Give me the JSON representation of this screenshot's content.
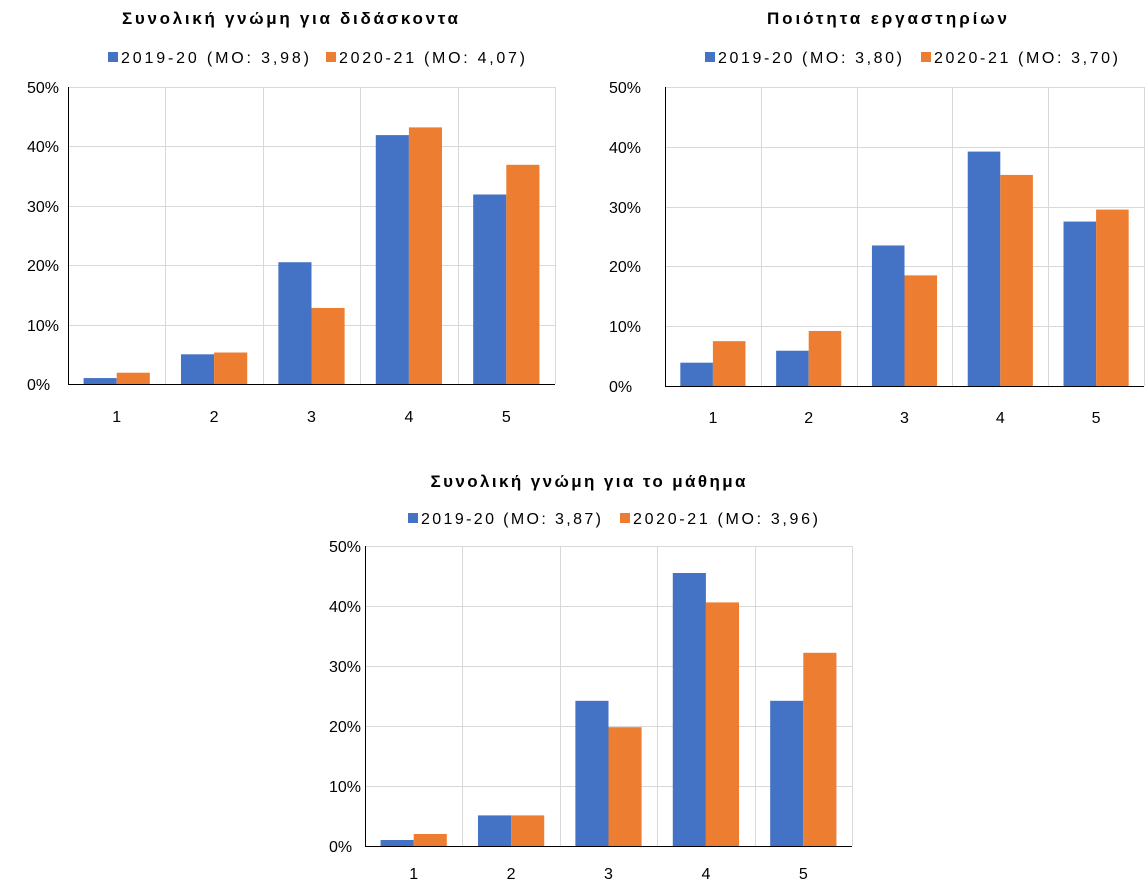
{
  "colors": {
    "grid": "#D9D9D9",
    "axis": "#000000",
    "text": "#000000"
  },
  "chart_data": [
    {
      "type": "bar",
      "title": "Συνολική γνώμη για διδάσκοντα",
      "categories": [
        "1",
        "2",
        "3",
        "4",
        "5"
      ],
      "series": [
        {
          "name": "2019-20 (MO: 3,98)",
          "color": "#4472C4",
          "values": [
            1.0,
            5.0,
            20.5,
            41.9,
            31.9
          ]
        },
        {
          "name": "2020-21 (MO: 4,07)",
          "color": "#ED7D31",
          "values": [
            1.9,
            5.3,
            12.8,
            43.2,
            36.9
          ]
        }
      ],
      "ylim": [
        0,
        50
      ],
      "yticks": [
        0,
        10,
        20,
        30,
        40,
        50
      ],
      "ytick_labels": [
        "0%",
        "10%",
        "20%",
        "30%",
        "40%",
        "50%"
      ],
      "grid": true,
      "legend": "top"
    },
    {
      "type": "bar",
      "title": "Ποιότητα εργαστηρίων",
      "categories": [
        "1",
        "2",
        "3",
        "4",
        "5"
      ],
      "series": [
        {
          "name": "2019-20 (MO: 3,80)",
          "color": "#4472C4",
          "values": [
            3.9,
            5.9,
            23.5,
            39.2,
            27.5
          ]
        },
        {
          "name": "2020-21 (MO: 3,70)",
          "color": "#ED7D31",
          "values": [
            7.5,
            9.2,
            18.5,
            35.3,
            29.5
          ]
        }
      ],
      "ylim": [
        0,
        50
      ],
      "yticks": [
        0,
        10,
        20,
        30,
        40,
        50
      ],
      "ytick_labels": [
        "0%",
        "10%",
        "20%",
        "30%",
        "40%",
        "50%"
      ],
      "grid": true,
      "legend": "top"
    },
    {
      "type": "bar",
      "title": "Συνολική γνώμη για το μάθημα",
      "categories": [
        "1",
        "2",
        "3",
        "4",
        "5"
      ],
      "series": [
        {
          "name": "2019-20 (MO: 3,87)",
          "color": "#4472C4",
          "values": [
            1.0,
            5.1,
            24.2,
            45.5,
            24.2
          ]
        },
        {
          "name": "2020-21 (MO: 3,96)",
          "color": "#ED7D31",
          "values": [
            2.0,
            5.1,
            19.8,
            40.6,
            32.2
          ]
        }
      ],
      "ylim": [
        0,
        50
      ],
      "yticks": [
        0,
        10,
        20,
        30,
        40,
        50
      ],
      "ytick_labels": [
        "0%",
        "10%",
        "20%",
        "30%",
        "40%",
        "50%"
      ],
      "grid": true,
      "legend": "top"
    }
  ]
}
